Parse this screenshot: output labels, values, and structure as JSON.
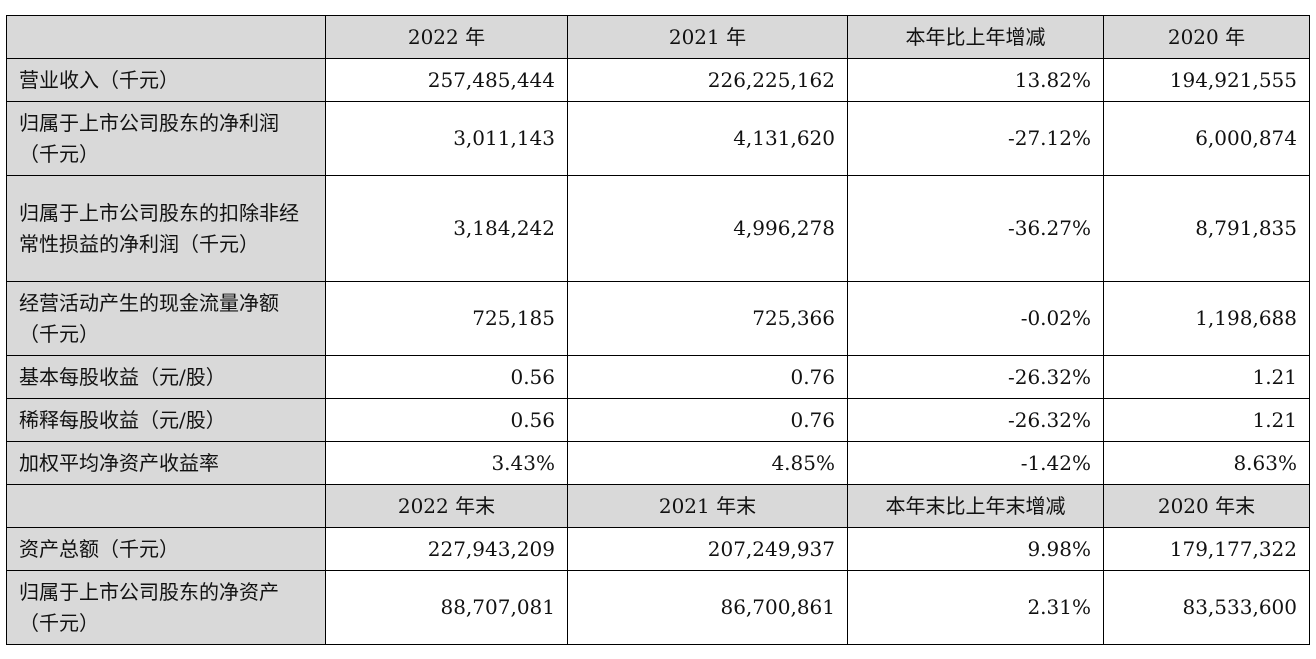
{
  "header_current": [
    "2022 年",
    "2021 年",
    "本年比上年增减",
    "2020 年"
  ],
  "header_balance": [
    "2022 年末",
    "2021 年末",
    "本年末比上年末增减",
    "2020 年末"
  ],
  "rows_current": [
    {
      "label": "营业收入（千元）",
      "values": [
        "257,485,444",
        "226,225,162",
        "13.82%",
        "194,921,555"
      ]
    },
    {
      "label": "归属于上市公司股东的净利润（千元）",
      "values": [
        "3,011,143",
        "4,131,620",
        "-27.12%",
        "6,000,874"
      ]
    },
    {
      "label": "归属于上市公司股东的扣除非经常性损益的净利润（千元）",
      "values": [
        "3,184,242",
        "4,996,278",
        "-36.27%",
        "8,791,835"
      ]
    },
    {
      "label": "经营活动产生的现金流量净额（千元）",
      "values": [
        "725,185",
        "725,366",
        "-0.02%",
        "1,198,688"
      ]
    },
    {
      "label": "基本每股收益（元/股）",
      "values": [
        "0.56",
        "0.76",
        "-26.32%",
        "1.21"
      ]
    },
    {
      "label": "稀释每股收益（元/股）",
      "values": [
        "0.56",
        "0.76",
        "-26.32%",
        "1.21"
      ]
    },
    {
      "label": "加权平均净资产收益率",
      "values": [
        "3.43%",
        "4.85%",
        "-1.42%",
        "8.63%"
      ]
    }
  ],
  "rows_balance": [
    {
      "label": "资产总额（千元）",
      "values": [
        "227,943,209",
        "207,249,937",
        "9.98%",
        "179,177,322"
      ]
    },
    {
      "label": "归属于上市公司股东的净资产（千元）",
      "values": [
        "88,707,081",
        "86,700,861",
        "2.31%",
        "83,533,600"
      ]
    }
  ]
}
